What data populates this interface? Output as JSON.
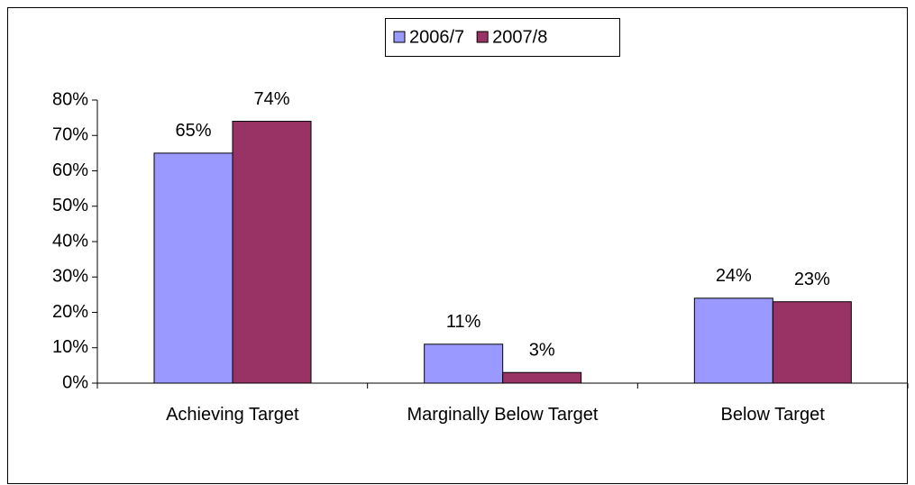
{
  "chart_data": {
    "type": "bar",
    "categories": [
      "Achieving Target",
      "Marginally Below Target",
      "Below Target"
    ],
    "series": [
      {
        "name": "2006/7",
        "color": "#9999ff",
        "values": [
          65,
          11,
          24
        ],
        "value_labels": [
          "65%",
          "11%",
          "24%"
        ]
      },
      {
        "name": "2007/8",
        "color": "#993366",
        "values": [
          74,
          3,
          23
        ],
        "value_labels": [
          "74%",
          "3%",
          "23%"
        ]
      }
    ],
    "ylim": [
      0,
      80
    ],
    "yticks": [
      {
        "value": 0,
        "label": "0%"
      },
      {
        "value": 10,
        "label": "10%"
      },
      {
        "value": 20,
        "label": "20%"
      },
      {
        "value": 30,
        "label": "30%"
      },
      {
        "value": 40,
        "label": "40%"
      },
      {
        "value": 50,
        "label": "50%"
      },
      {
        "value": 60,
        "label": "60%"
      },
      {
        "value": 70,
        "label": "70%"
      },
      {
        "value": 80,
        "label": "80%"
      }
    ],
    "legend": "top"
  }
}
